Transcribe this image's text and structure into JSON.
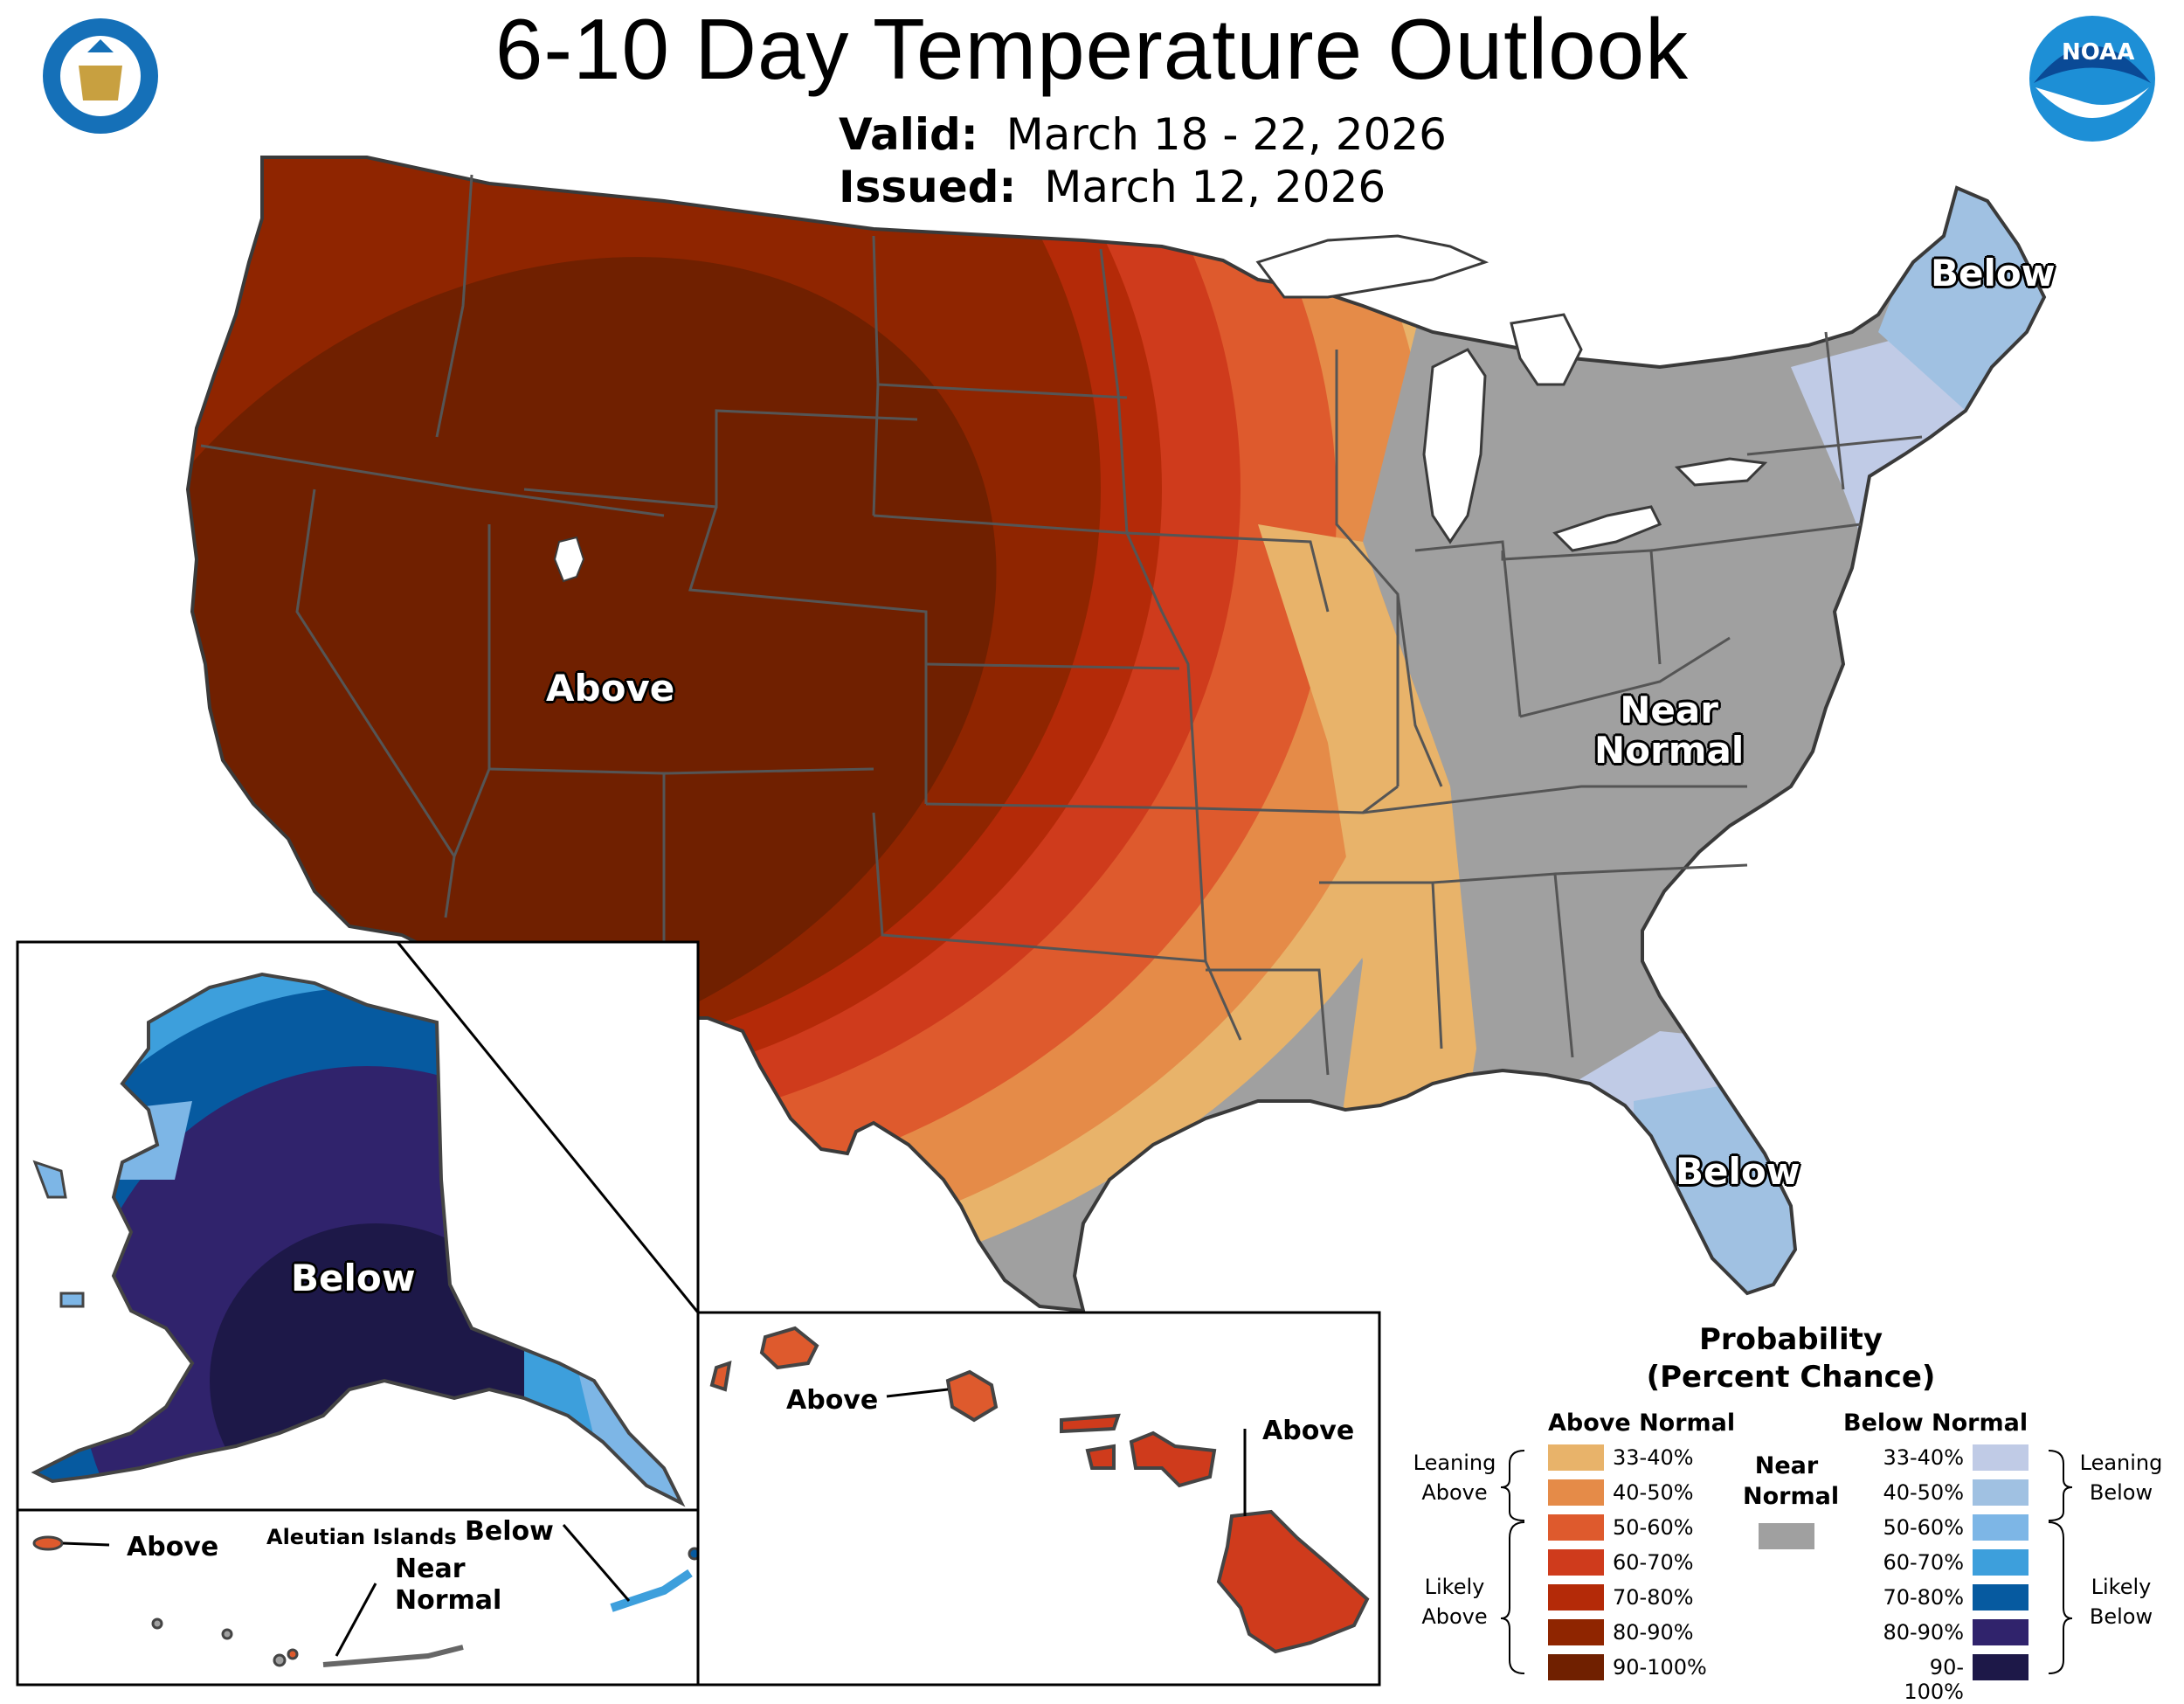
{
  "title": "6-10 Day Temperature Outlook",
  "valid": {
    "label": "Valid:",
    "value": "March 18 - 22, 2026"
  },
  "issued": {
    "label": "Issued:",
    "value": "March 12, 2026"
  },
  "logos": {
    "left": "Department of Commerce seal",
    "right": "NOAA logo",
    "right_text": "NOAA"
  },
  "labels": {
    "conus_above": "Above",
    "conus_near_line1": "Near",
    "conus_near_line2": "Normal",
    "northeast_below": "Below",
    "florida_below": "Below",
    "alaska_below": "Below",
    "aleutian_title": "Aleutian Islands",
    "aleutian_above": "Above",
    "aleutian_below": "Below",
    "aleutian_near_line1": "Near",
    "aleutian_near_line2": "Normal",
    "hawaii_above_west": "Above",
    "hawaii_above_east": "Above"
  },
  "legend": {
    "title_line1": "Probability",
    "title_line2": "(Percent Chance)",
    "above_header": "Above Normal",
    "below_header": "Below Normal",
    "near_line1": "Near",
    "near_line2": "Normal",
    "near_color": "#a0a0a0",
    "leaning_above_1": "Leaning",
    "leaning_above_2": "Above",
    "likely_above_1": "Likely",
    "likely_above_2": "Above",
    "leaning_below_1": "Leaning",
    "leaning_below_2": "Below",
    "likely_below_1": "Likely",
    "likely_below_2": "Below",
    "above": [
      {
        "range": "33-40%",
        "color": "#e8b36a"
      },
      {
        "range": "40-50%",
        "color": "#e58b48"
      },
      {
        "range": "50-60%",
        "color": "#de5a2d"
      },
      {
        "range": "60-70%",
        "color": "#cf3b1c"
      },
      {
        "range": "70-80%",
        "color": "#b42a08"
      },
      {
        "range": "80-90%",
        "color": "#8f2500"
      },
      {
        "range": "90-100%",
        "color": "#702000"
      }
    ],
    "below": [
      {
        "range": "33-40%",
        "color": "#c0cbe6"
      },
      {
        "range": "40-50%",
        "color": "#a0c1e2"
      },
      {
        "range": "50-60%",
        "color": "#7db6e6"
      },
      {
        "range": "60-70%",
        "color": "#3d9fdc"
      },
      {
        "range": "70-80%",
        "color": "#065aa0"
      },
      {
        "range": "80-90%",
        "color": "#30236c"
      },
      {
        "range": "90-100%",
        "color": "#1d1848"
      }
    ]
  }
}
